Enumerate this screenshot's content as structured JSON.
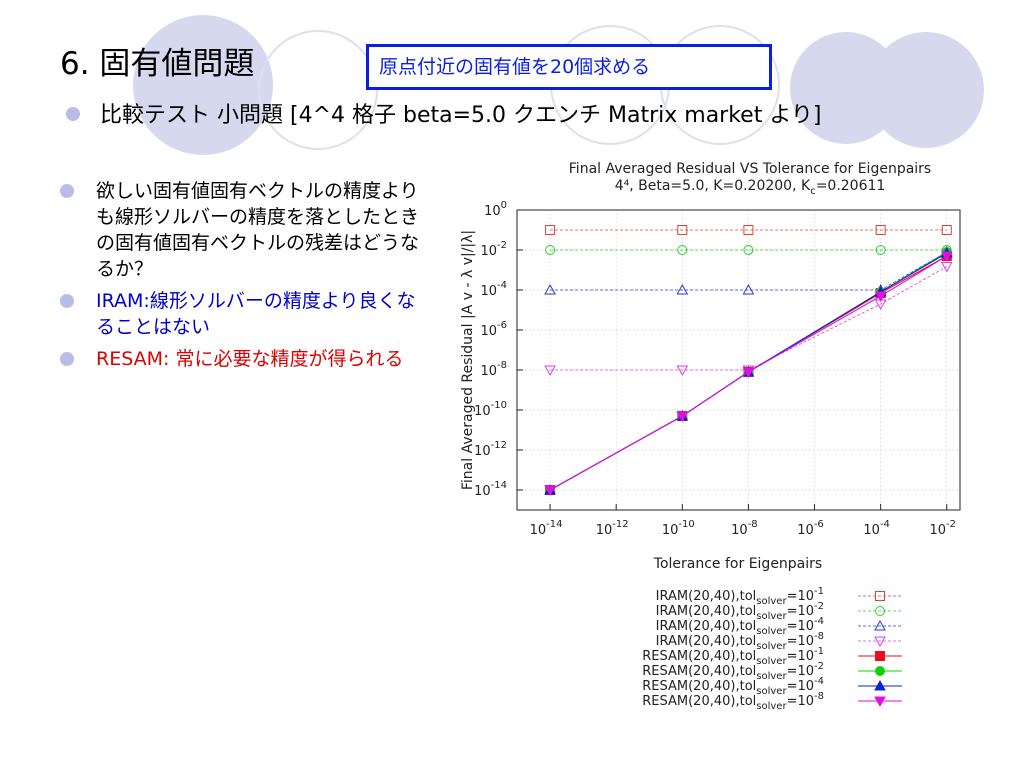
{
  "slide": {
    "title": "6. 固有値問題",
    "callout": "原点付近の固有値を20個求める",
    "subtitle": "比較テスト 小問題 [4^4 格子 beta=5.0 クエンチ Matrix market より]",
    "bullets": [
      {
        "text": "欲しい固有値固有ベクトルの精度よりも線形ソルバーの精度を落としたときの固有値固有ベクトルの残差はどうなるか？",
        "color": "#000000"
      },
      {
        "text": "IRAM:線形ソルバーの精度より良くなることはない",
        "color": "#0000cc"
      },
      {
        "text": "RESAM: 常に必要な精度が得られる",
        "color": "#dd0000"
      }
    ]
  },
  "chart_data": {
    "type": "line",
    "title_line1": "Final Averaged Residual VS Tolerance for Eigenpairs",
    "title_line2": "4⁴, Beta=5.0, K=0.20200, K",
    "title_line2_sub": "c",
    "title_line2_tail": "=0.20611",
    "xlabel": "Tolerance for Eigenpairs",
    "ylabel": "Final Averaged Residual  |A v - λ v|/|λ|",
    "x_scale": "log",
    "y_scale": "log",
    "x_ticks": [
      {
        "exp": -14,
        "base": "10",
        "sup": "-14"
      },
      {
        "exp": -12,
        "base": "10",
        "sup": "-12"
      },
      {
        "exp": -10,
        "base": "10",
        "sup": "-10"
      },
      {
        "exp": -8,
        "base": "10",
        "sup": "-8"
      },
      {
        "exp": -6,
        "base": "10",
        "sup": "-6"
      },
      {
        "exp": -4,
        "base": "10",
        "sup": "-4"
      },
      {
        "exp": -2,
        "base": "10",
        "sup": "-2"
      }
    ],
    "y_ticks": [
      {
        "exp": 0,
        "base": "10",
        "sup": "0"
      },
      {
        "exp": -2,
        "base": "10",
        "sup": "-2"
      },
      {
        "exp": -4,
        "base": "10",
        "sup": "-4"
      },
      {
        "exp": -6,
        "base": "10",
        "sup": "-6"
      },
      {
        "exp": -8,
        "base": "10",
        "sup": "-8"
      },
      {
        "exp": -10,
        "base": "10",
        "sup": "-10"
      },
      {
        "exp": -12,
        "base": "10",
        "sup": "-12"
      },
      {
        "exp": -14,
        "base": "10",
        "sup": "-14"
      }
    ],
    "xlim_exp": [
      -15,
      -1.6
    ],
    "ylim_exp": [
      -15,
      0
    ],
    "x": [
      1e-14,
      1e-10,
      1e-08,
      0.0001,
      0.01
    ],
    "legend_position": "bottom-right, below plot",
    "series": [
      {
        "prefix": "IRAM(20,40),tol",
        "sub": "solver",
        "eq": "=10",
        "sup": "-1",
        "color": "#e0413a",
        "marker": "square",
        "filled": false,
        "dashed": true,
        "y": [
          0.1,
          0.1,
          0.1,
          0.1,
          0.1
        ]
      },
      {
        "prefix": "IRAM(20,40),tol",
        "sub": "solver",
        "eq": "=10",
        "sup": "-2",
        "color": "#2ccc2c",
        "marker": "circle",
        "filled": false,
        "dashed": true,
        "y": [
          0.01,
          0.01,
          0.01,
          0.01,
          0.01
        ]
      },
      {
        "prefix": "IRAM(20,40),tol",
        "sub": "solver",
        "eq": "=10",
        "sup": "-4",
        "color": "#2a3ad6",
        "marker": "triangle-up",
        "filled": false,
        "dashed": true,
        "y": [
          0.0001,
          0.0001,
          0.0001,
          0.0001,
          0.008
        ]
      },
      {
        "prefix": "IRAM(20,40),tol",
        "sub": "solver",
        "eq": "=10",
        "sup": "-8",
        "color": "#e23be2",
        "marker": "triangle-down",
        "filled": false,
        "dashed": true,
        "y": [
          1e-08,
          1e-08,
          1e-08,
          2e-05,
          0.0015
        ]
      },
      {
        "prefix": "RESAM(20,40),tol",
        "sub": "solver",
        "eq": "=10",
        "sup": "-1",
        "color": "#e8101c",
        "marker": "square",
        "filled": true,
        "dashed": false,
        "y": [
          1e-14,
          5e-11,
          8e-09,
          7e-05,
          0.005
        ]
      },
      {
        "prefix": "RESAM(20,40),tol",
        "sub": "solver",
        "eq": "=10",
        "sup": "-2",
        "color": "#10d010",
        "marker": "circle",
        "filled": true,
        "dashed": false,
        "y": [
          1e-14,
          5e-11,
          8e-09,
          8e-05,
          0.008
        ]
      },
      {
        "prefix": "RESAM(20,40),tol",
        "sub": "solver",
        "eq": "=10",
        "sup": "-4",
        "color": "#1020d0",
        "marker": "triangle-up",
        "filled": true,
        "dashed": false,
        "y": [
          1e-14,
          5e-11,
          8e-09,
          8e-05,
          0.007
        ]
      },
      {
        "prefix": "RESAM(20,40),tol",
        "sub": "solver",
        "eq": "=10",
        "sup": "-8",
        "color": "#e010e0",
        "marker": "triangle-down",
        "filled": true,
        "dashed": false,
        "y": [
          1e-14,
          5e-11,
          8e-09,
          5e-05,
          0.005
        ]
      }
    ]
  }
}
